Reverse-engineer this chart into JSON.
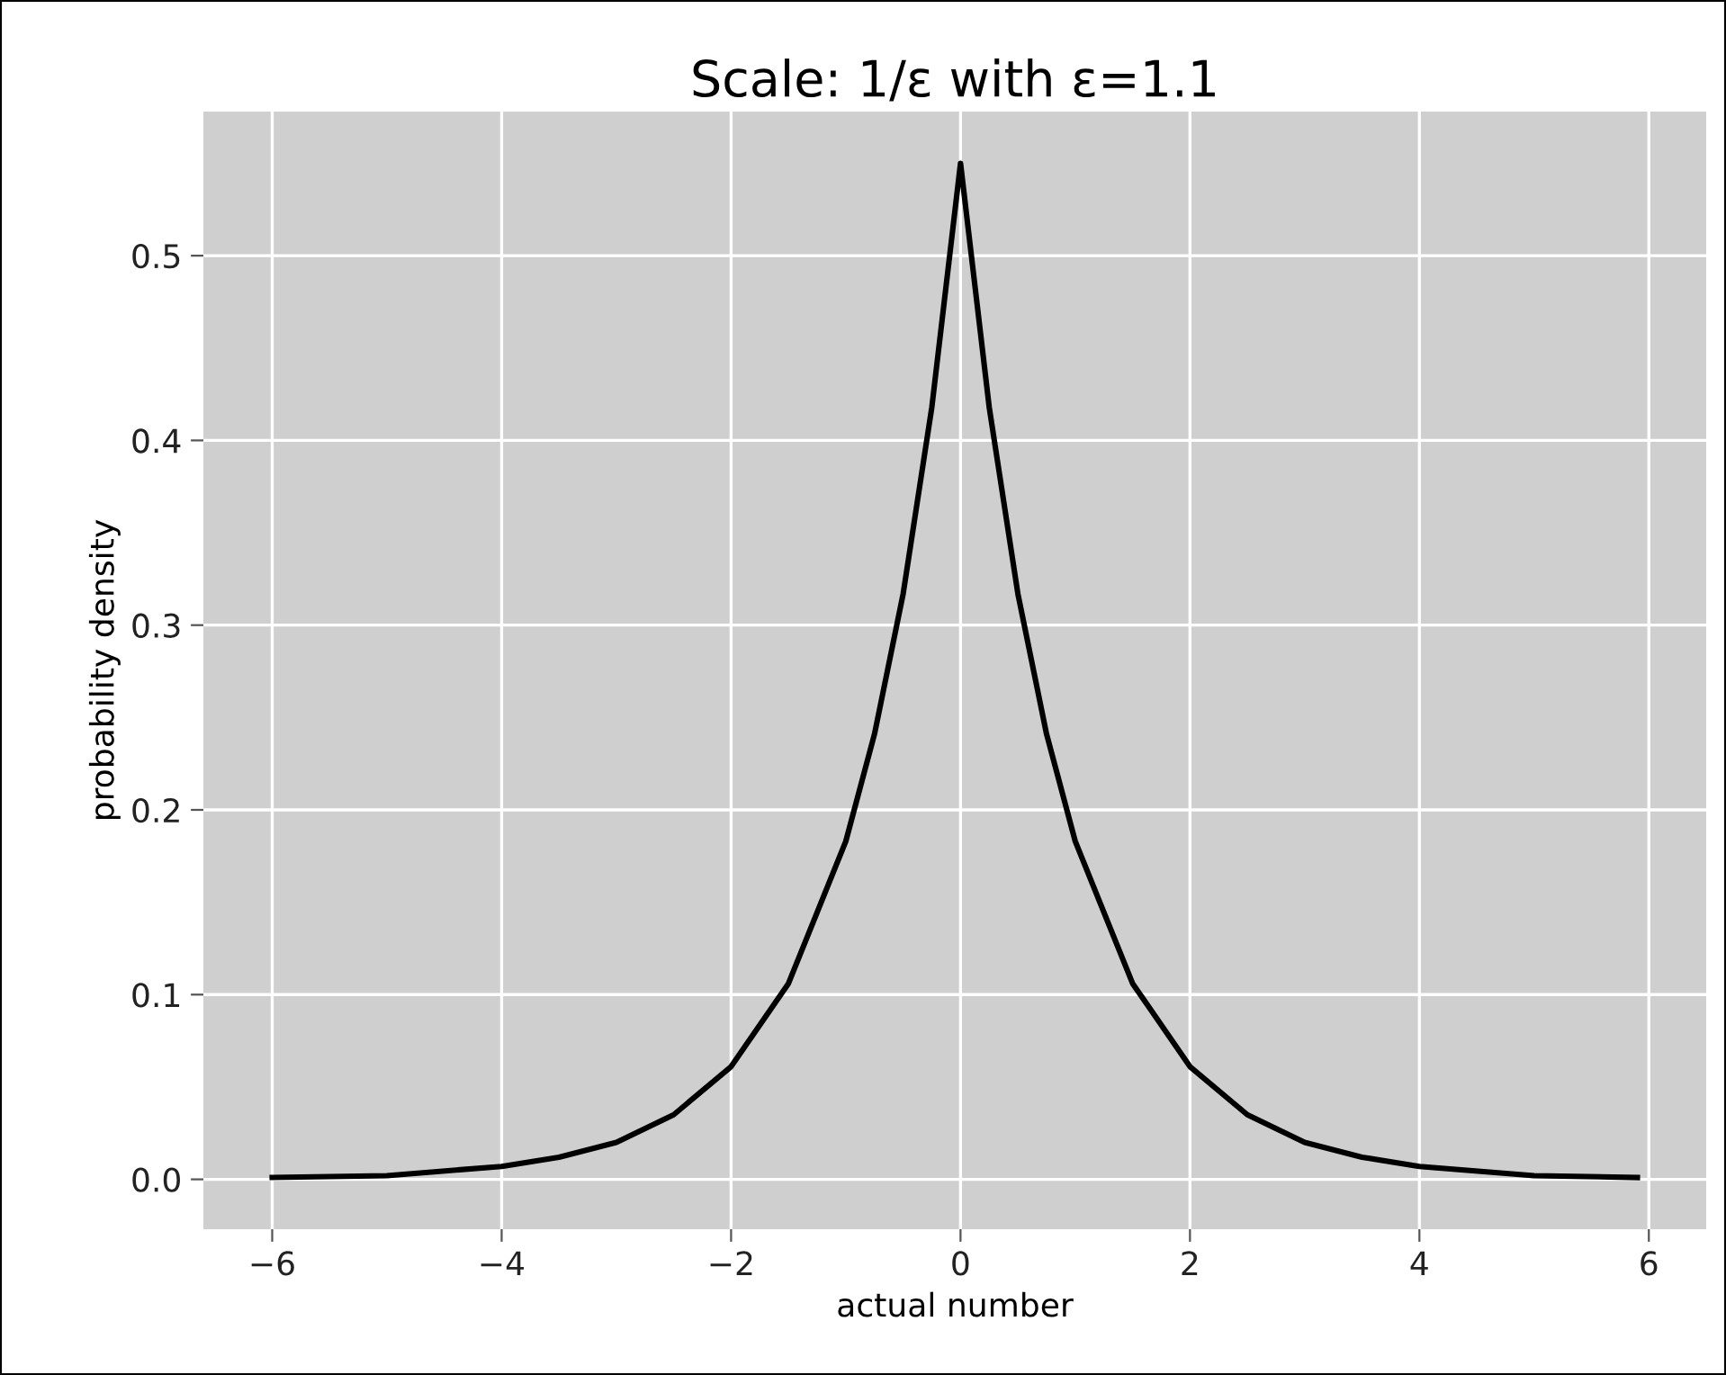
{
  "chart_data": {
    "type": "line",
    "title": "Scale: 1/ε with ε=1.1",
    "xlabel": "actual number",
    "ylabel": "probability density",
    "x": [
      -6,
      -5,
      -4,
      -3.5,
      -3,
      -2.5,
      -2,
      -1.5,
      -1,
      -0.75,
      -0.5,
      -0.25,
      0,
      0.25,
      0.5,
      0.75,
      1,
      1.5,
      2,
      2.5,
      3,
      3.5,
      4,
      5,
      5.9
    ],
    "series": [
      {
        "color": "#000000",
        "values": [
          0.001,
          0.002,
          0.007,
          0.012,
          0.02,
          0.035,
          0.061,
          0.106,
          0.183,
          0.241,
          0.317,
          0.418,
          0.55,
          0.418,
          0.317,
          0.241,
          0.183,
          0.106,
          0.061,
          0.035,
          0.02,
          0.012,
          0.007,
          0.002,
          0.001
        ]
      }
    ],
    "xlim": [
      -6.6,
      6.5
    ],
    "ylim": [
      -0.027,
      0.578
    ],
    "xticks": [
      {
        "value": -6,
        "label": "−6"
      },
      {
        "value": -4,
        "label": "−4"
      },
      {
        "value": -2,
        "label": "−2"
      },
      0,
      2,
      4,
      6
    ],
    "yticks": [
      {
        "value": 0,
        "label": "0.0"
      },
      0.1,
      0.2,
      0.3,
      0.4,
      0.5
    ],
    "grid": true,
    "line_style": "solid",
    "marker": "none"
  }
}
